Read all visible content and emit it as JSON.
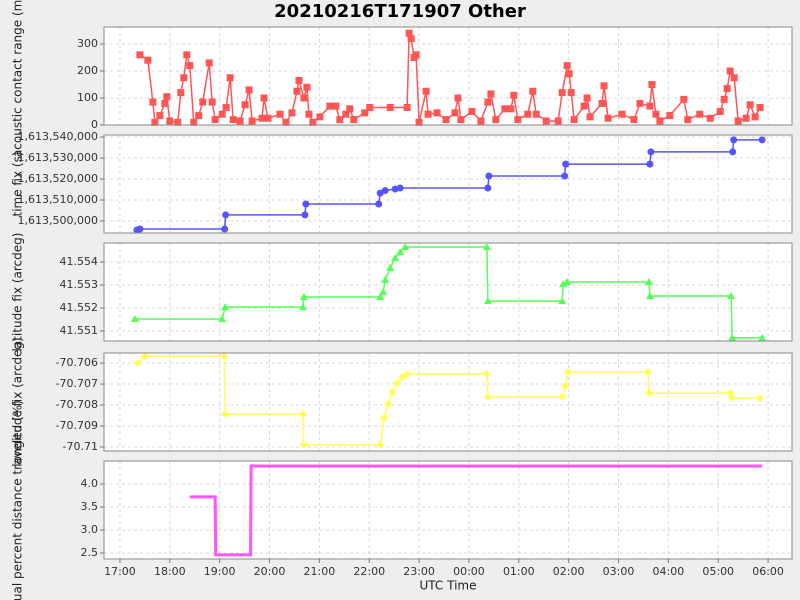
{
  "title": "20210216T171907 Other",
  "chart_data": [
    {
      "type": "line",
      "ylabel": "acoustic contact range (m)",
      "color": "#ff5555",
      "marker": "square",
      "ylim": [
        0,
        363
      ],
      "yticks": [
        0,
        100,
        200,
        300
      ],
      "grid": true,
      "x": [
        17.4,
        17.56,
        17.66,
        17.7,
        17.8,
        17.9,
        17.94,
        18.0,
        18.16,
        18.22,
        18.28,
        18.34,
        18.4,
        18.48,
        18.58,
        18.66,
        18.79,
        18.85,
        18.91,
        19.05,
        19.13,
        19.21,
        19.27,
        19.41,
        19.51,
        19.59,
        19.65,
        19.85,
        19.89,
        19.97,
        20.21,
        20.33,
        20.45,
        20.55,
        20.59,
        20.69,
        20.75,
        20.79,
        20.87,
        21.01,
        21.21,
        21.33,
        21.41,
        21.53,
        21.61,
        21.69,
        21.91,
        22.01,
        22.42,
        22.76,
        22.8,
        22.84,
        22.9,
        22.94,
        23.0,
        23.14,
        23.18,
        23.36,
        23.54,
        23.72,
        23.78,
        23.84,
        24.06,
        24.24,
        24.38,
        24.44,
        24.54,
        24.72,
        24.84,
        24.9,
        24.98,
        25.18,
        25.28,
        25.35,
        25.55,
        25.79,
        25.87,
        25.97,
        26.01,
        26.05,
        26.11,
        26.31,
        26.37,
        26.43,
        26.67,
        26.71,
        26.79,
        27.07,
        27.31,
        27.43,
        27.63,
        27.67,
        27.75,
        27.83,
        28.03,
        28.31,
        28.39,
        28.63,
        28.84,
        29.04,
        29.12,
        29.18,
        29.24,
        29.32,
        29.4,
        29.56,
        29.64,
        29.74,
        29.84
      ],
      "values": [
        260,
        240,
        85,
        10,
        35,
        80,
        105,
        15,
        10,
        120,
        175,
        260,
        220,
        10,
        35,
        85,
        230,
        85,
        20,
        40,
        65,
        175,
        20,
        15,
        75,
        130,
        15,
        25,
        100,
        25,
        40,
        10,
        45,
        125,
        165,
        100,
        140,
        40,
        10,
        30,
        70,
        70,
        20,
        40,
        60,
        20,
        45,
        65,
        65,
        65,
        340,
        320,
        250,
        260,
        10,
        125,
        40,
        45,
        20,
        45,
        100,
        20,
        50,
        15,
        85,
        115,
        20,
        60,
        60,
        110,
        20,
        40,
        125,
        40,
        15,
        15,
        120,
        220,
        190,
        120,
        20,
        70,
        100,
        30,
        80,
        145,
        25,
        40,
        20,
        80,
        70,
        150,
        40,
        15,
        35,
        95,
        20,
        40,
        25,
        50,
        95,
        135,
        200,
        175,
        15,
        25,
        75,
        30,
        65
      ]
    },
    {
      "type": "line",
      "ylabel": "time fix (s)",
      "color": "#5555ff",
      "marker": "circle",
      "ylim": [
        1613494290,
        1613540950
      ],
      "yticks": [
        {
          "value": 1613500000,
          "label": "1,613,500,000"
        },
        {
          "value": 1613510000,
          "label": "1,613,510,000"
        },
        {
          "value": 1613520000,
          "label": "1,613,520,000"
        },
        {
          "value": 1613530000,
          "label": "1,613,530,000"
        },
        {
          "value": 1613540000,
          "label": "1,613,540,000"
        }
      ],
      "grid": true,
      "x": [
        17.34,
        17.4,
        19.1,
        19.12,
        20.71,
        20.73,
        22.19,
        22.22,
        22.32,
        22.52,
        22.62,
        24.38,
        24.4,
        25.92,
        25.94,
        27.63,
        27.65,
        29.29,
        29.31,
        29.88
      ],
      "values": [
        1613495700,
        1613496200,
        1613496200,
        1613502900,
        1613502900,
        1613508100,
        1613508100,
        1613513300,
        1613514500,
        1613515200,
        1613515700,
        1613515700,
        1613521400,
        1613521400,
        1613527100,
        1613527100,
        1613532900,
        1613532900,
        1613538600,
        1613538600
      ]
    },
    {
      "type": "line",
      "ylabel": "latitude fix (arcdeg)",
      "color": "#55ff55",
      "marker": "triangle",
      "ylim": [
        41.550565,
        41.554826
      ],
      "yticks": [
        41.551,
        41.552,
        41.553,
        41.554
      ],
      "grid": true,
      "x": [
        17.3,
        19.05,
        19.11,
        20.67,
        20.69,
        22.22,
        22.28,
        22.32,
        22.42,
        22.52,
        22.62,
        22.72,
        24.36,
        24.38,
        25.87,
        25.89,
        25.97,
        27.61,
        27.63,
        29.26,
        29.28,
        29.88
      ],
      "values": [
        41.55152,
        41.55152,
        41.55204,
        41.55204,
        41.55248,
        41.55248,
        41.5527,
        41.55322,
        41.55374,
        41.55417,
        41.55443,
        41.55465,
        41.55465,
        41.5523,
        41.5523,
        41.55304,
        41.55313,
        41.55313,
        41.55252,
        41.55252,
        41.5507,
        41.5507
      ]
    },
    {
      "type": "line",
      "ylabel": "longitude fix (arcdeg)",
      "color": "#ffff55",
      "marker": "diamond",
      "ylim": [
        -70.71019,
        -70.70552
      ],
      "yticks": [
        -70.706,
        -70.707,
        -70.708,
        -70.709,
        -70.71
      ],
      "grid": true,
      "x": [
        17.36,
        17.5,
        19.09,
        19.11,
        20.67,
        20.69,
        22.22,
        22.3,
        22.38,
        22.46,
        22.56,
        22.66,
        22.76,
        24.36,
        24.38,
        25.87,
        25.93,
        25.99,
        27.59,
        27.61,
        29.24,
        29.28,
        29.84
      ],
      "values": [
        -70.706,
        -70.70567,
        -70.70567,
        -70.70843,
        -70.70843,
        -70.7099,
        -70.7099,
        -70.70862,
        -70.70795,
        -70.70738,
        -70.70695,
        -70.70667,
        -70.70652,
        -70.70652,
        -70.70762,
        -70.70762,
        -70.7071,
        -70.70643,
        -70.70643,
        -70.70743,
        -70.70743,
        -70.70767,
        -70.70767
      ]
    },
    {
      "type": "line",
      "ylabel": "actual percent distance traveled (%)",
      "color": "#ff55ff",
      "marker": "none",
      "ylim": [
        2.37,
        4.5
      ],
      "yticks": [
        {
          "value": 2.5,
          "label": "2.5"
        },
        {
          "value": 3,
          "label": "3.0"
        },
        {
          "value": 3.5,
          "label": "3.5"
        },
        {
          "value": 4,
          "label": "4.0"
        }
      ],
      "grid": true,
      "x": [
        18.4,
        18.91,
        18.92,
        19.62,
        19.63,
        29.88
      ],
      "values": [
        3.72,
        3.72,
        2.46,
        2.46,
        4.39,
        4.39
      ],
      "xlabel": "UTC Time",
      "xlim": [
        16.68,
        30.48
      ],
      "xticks": [
        {
          "value": 17,
          "label": "17:00"
        },
        {
          "value": 18,
          "label": "18:00"
        },
        {
          "value": 19,
          "label": "19:00"
        },
        {
          "value": 20,
          "label": "20:00"
        },
        {
          "value": 21,
          "label": "21:00"
        },
        {
          "value": 22,
          "label": "22:00"
        },
        {
          "value": 23,
          "label": "23:00"
        },
        {
          "value": 24,
          "label": "00:00"
        },
        {
          "value": 25,
          "label": "01:00"
        },
        {
          "value": 26,
          "label": "02:00"
        },
        {
          "value": 27,
          "label": "03:00"
        },
        {
          "value": 28,
          "label": "04:00"
        },
        {
          "value": 29,
          "label": "05:00"
        },
        {
          "value": 30,
          "label": "06:00"
        }
      ]
    }
  ]
}
